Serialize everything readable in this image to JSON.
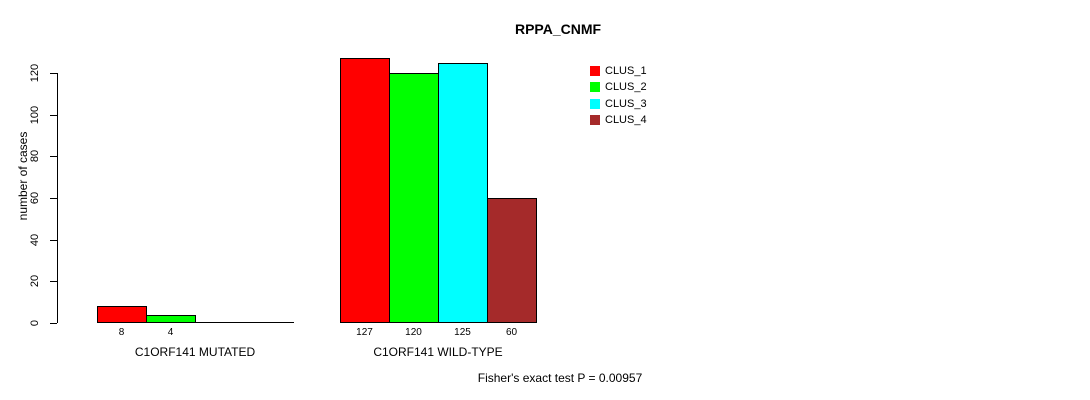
{
  "title": "RPPA_CNMF",
  "y_axis": {
    "label": "number of cases",
    "ticks": [
      "0",
      "20",
      "40",
      "60",
      "80",
      "100",
      "120"
    ]
  },
  "footer": "Fisher's exact test P = 0.00957",
  "legend": {
    "items": [
      {
        "label": "CLUS_1",
        "color": "#FF0000"
      },
      {
        "label": "CLUS_2",
        "color": "#00FF00"
      },
      {
        "label": "CLUS_3",
        "color": "#00FFFF"
      },
      {
        "label": "CLUS_4",
        "color": "#A52A2A"
      }
    ]
  },
  "chart_data": {
    "type": "bar",
    "title": "RPPA_CNMF",
    "ylabel": "number of cases",
    "ylim": [
      0,
      120
    ],
    "yticks": [
      0,
      20,
      40,
      60,
      80,
      100,
      120
    ],
    "grid": false,
    "legend_position": "top-right",
    "categories": [
      "C1ORF141 MUTATED",
      "C1ORF141 WILD-TYPE"
    ],
    "series": [
      {
        "name": "CLUS_1",
        "color": "#FF0000",
        "values": [
          8,
          127
        ]
      },
      {
        "name": "CLUS_2",
        "color": "#00FF00",
        "values": [
          4,
          120
        ]
      },
      {
        "name": "CLUS_3",
        "color": "#00FFFF",
        "values": [
          0,
          125
        ]
      },
      {
        "name": "CLUS_4",
        "color": "#A52A2A",
        "values": [
          0,
          60
        ]
      }
    ],
    "bar_value_labels": [
      [
        "8",
        "4",
        "",
        ""
      ],
      [
        "127",
        "120",
        "125",
        "60"
      ]
    ],
    "annotation": "Fisher's exact test P = 0.00957"
  }
}
